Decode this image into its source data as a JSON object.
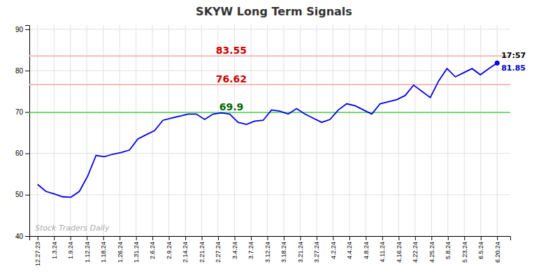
{
  "chart_data": {
    "type": "line",
    "title": "SKYW Long Term Signals",
    "color": "#0000EE",
    "grid": true,
    "xlim": [
      -0.5,
      28.8
    ],
    "xticks": [
      {
        "value": 0,
        "label": "12.27.23"
      },
      {
        "value": 1,
        "label": "1.3.24"
      },
      {
        "value": 2,
        "label": "1.9.24"
      },
      {
        "value": 3,
        "label": "1.12.24"
      },
      {
        "value": 4,
        "label": "1.18.24"
      },
      {
        "value": 5,
        "label": "1.26.24"
      },
      {
        "value": 6,
        "label": "1.31.24"
      },
      {
        "value": 7,
        "label": "2.6.24"
      },
      {
        "value": 8,
        "label": "2.9.24"
      },
      {
        "value": 9,
        "label": "2.14.24"
      },
      {
        "value": 10,
        "label": "2.21.24"
      },
      {
        "value": 11,
        "label": "2.27.24"
      },
      {
        "value": 12,
        "label": "3.4.24"
      },
      {
        "value": 13,
        "label": "3.7.24"
      },
      {
        "value": 14,
        "label": "3.12.24"
      },
      {
        "value": 15,
        "label": "3.18.24"
      },
      {
        "value": 16,
        "label": "3.21.24"
      },
      {
        "value": 17,
        "label": "3.27.24"
      },
      {
        "value": 18,
        "label": "4.2.24"
      },
      {
        "value": 19,
        "label": "4.4.24"
      },
      {
        "value": 20,
        "label": "4.8.24"
      },
      {
        "value": 21,
        "label": "4.11.24"
      },
      {
        "value": 22,
        "label": "4.16.24"
      },
      {
        "value": 23,
        "label": "4.22.24"
      },
      {
        "value": 24,
        "label": "4.25.24"
      },
      {
        "value": 25,
        "label": "5.8.24"
      },
      {
        "value": 26,
        "label": "5.23.24"
      },
      {
        "value": 27,
        "label": "6.5.24"
      },
      {
        "value": 28,
        "label": "6.20.24"
      }
    ],
    "ylim": [
      40,
      91
    ],
    "yticks": [
      40,
      50,
      60,
      70,
      80,
      90
    ],
    "x": [
      0,
      0.509091,
      1.018182,
      1.527273,
      2.036364,
      2.545455,
      3.054545,
      3.563636,
      4.072727,
      4.581818,
      5.090909,
      5.6,
      6.109091,
      6.618182,
      7.127273,
      7.636364,
      8.145455,
      8.654545,
      9.163636,
      9.672727,
      10.181818,
      10.690909,
      11.2,
      11.709091,
      12.218182,
      12.727273,
      13.236364,
      13.745455,
      14.254545,
      14.763636,
      15.272727,
      15.781818,
      16.290909,
      16.8,
      17.309091,
      17.818182,
      18.327273,
      18.836364,
      19.345455,
      19.854545,
      20.363636,
      20.872727,
      21.381818,
      21.890909,
      22.4,
      22.909091,
      23.418182,
      23.927273,
      24.436364,
      24.945455,
      25.454545,
      25.963636,
      26.472727,
      26.981818,
      27.490909,
      28
    ],
    "values": [
      52.5,
      50.8,
      50.2,
      49.5,
      49.4,
      50.8,
      54.5,
      59.5,
      59.2,
      59.8,
      60.2,
      60.8,
      63.5,
      64.5,
      65.5,
      68.0,
      68.5,
      69.0,
      69.5,
      69.5,
      68.2,
      69.5,
      69.8,
      69.5,
      67.5,
      67.0,
      67.8,
      68.0,
      70.5,
      70.2,
      69.5,
      70.8,
      69.5,
      68.5,
      67.5,
      68.2,
      70.5,
      72.0,
      71.5,
      70.5,
      69.5,
      72.0,
      72.5,
      73.0,
      74.0,
      76.5,
      75.0,
      73.5,
      77.5,
      80.5,
      78.5,
      79.5,
      80.5,
      79.0,
      80.5,
      81.85
    ],
    "hlines": [
      {
        "value": 83.55,
        "label": "83.55",
        "color": "#FFB0B0",
        "label_color": "#CC0000"
      },
      {
        "value": 76.62,
        "label": "76.62",
        "color": "#FFB0B0",
        "label_color": "#CC0000"
      },
      {
        "value": 69.9,
        "label": "69.9",
        "color": "#55CC55",
        "label_color": "#006600"
      }
    ],
    "annotations": [
      {
        "text": "17:57",
        "color": "#000000"
      },
      {
        "text": "81.85",
        "color": "#0000CC"
      },
      {
        "text": "Stock Traders Daily",
        "color": "#aaaaaa"
      }
    ]
  }
}
